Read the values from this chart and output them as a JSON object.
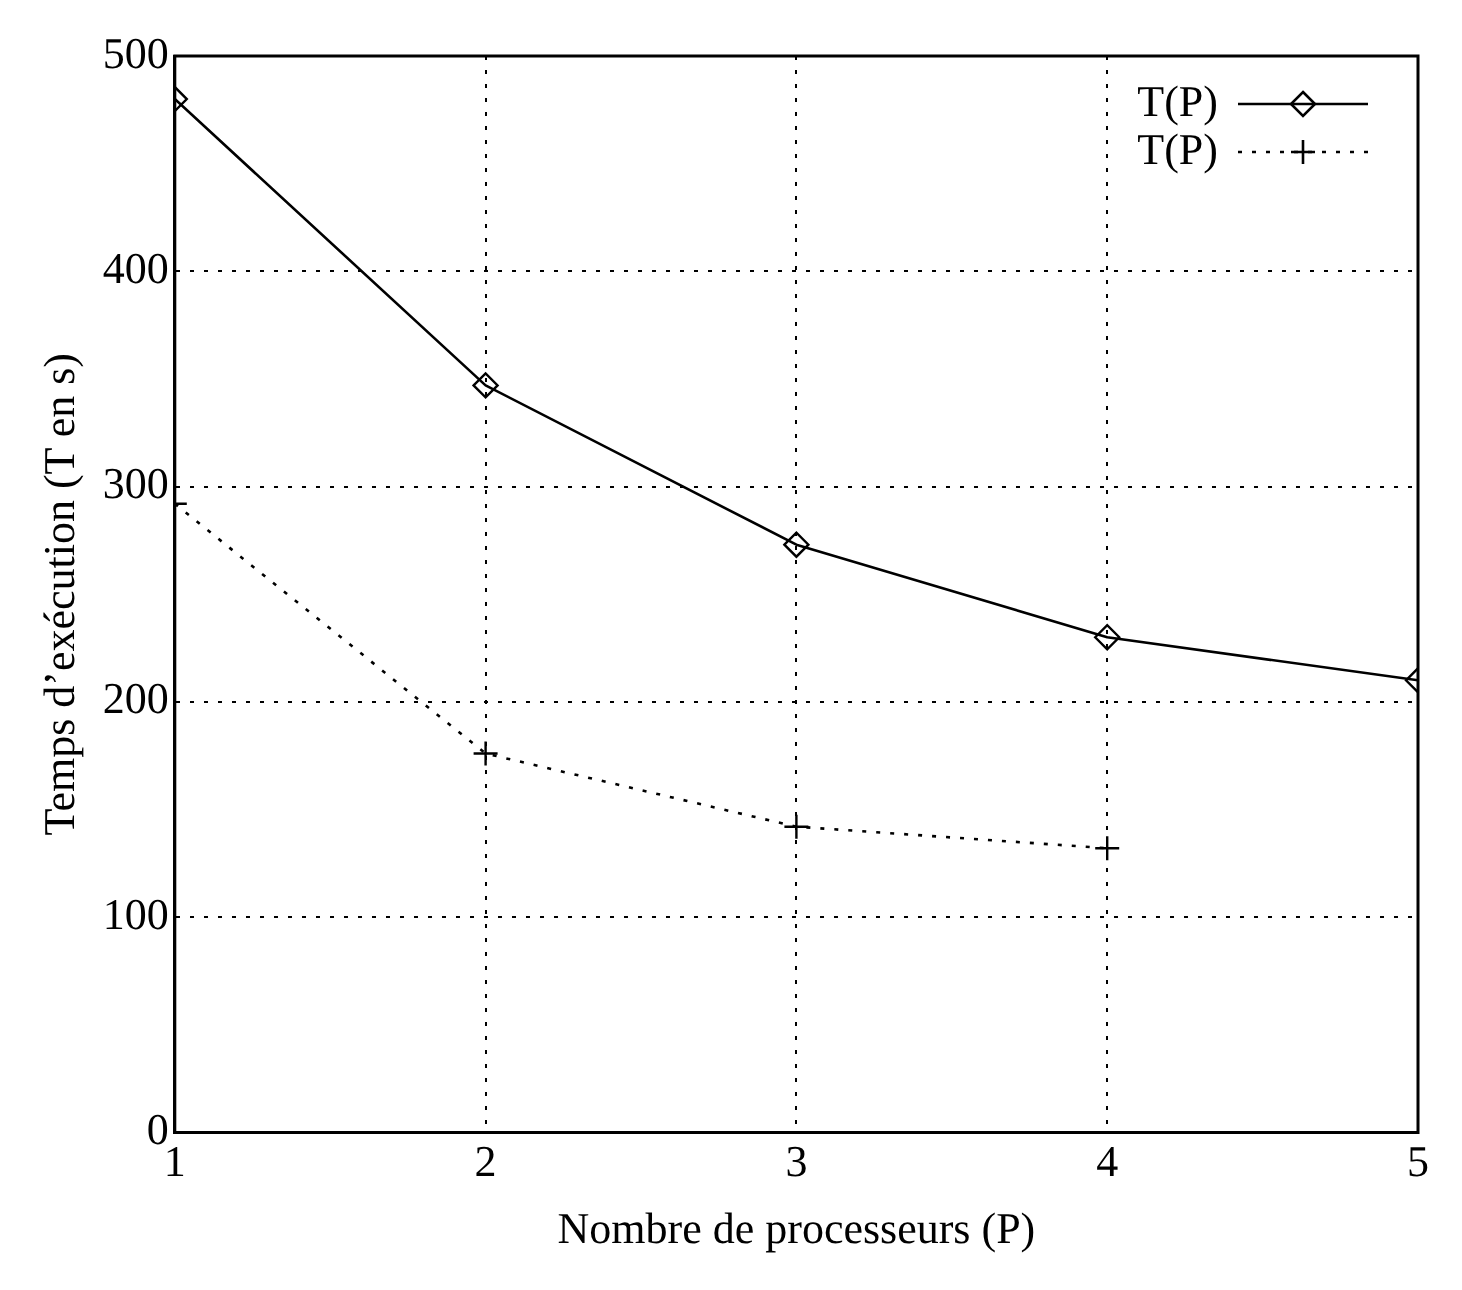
{
  "chart_data": {
    "type": "line",
    "xlabel": "Nombre de processeurs (P)",
    "ylabel": "Temps d’exécution (T en s)",
    "x": [
      1,
      2,
      3,
      4,
      5
    ],
    "xlim": [
      1,
      5
    ],
    "xticks": [
      1,
      2,
      3,
      4,
      5
    ],
    "ylim": [
      0,
      500
    ],
    "yticks": [
      0,
      100,
      200,
      300,
      400,
      500
    ],
    "grid": true,
    "legend": "top right",
    "series": [
      {
        "name": "T(P)",
        "color": "#000000",
        "values": [
          480,
          347,
          273,
          230,
          210
        ],
        "marker": "diamond",
        "line_style": "solid"
      },
      {
        "name": "T(P)",
        "color": "#000000",
        "values": [
          292,
          176,
          142,
          132,
          null
        ],
        "marker": "cross",
        "line_style": "dotted"
      }
    ]
  }
}
